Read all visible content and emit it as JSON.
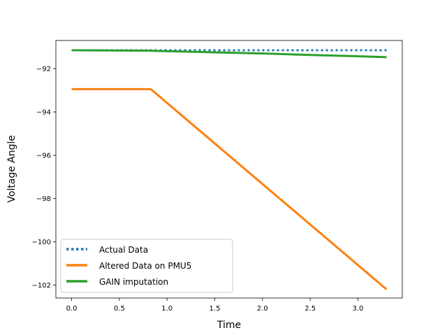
{
  "chart_data": {
    "type": "line",
    "xlabel": "Time",
    "ylabel": "Voltage Angle",
    "xlim": [
      -0.165,
      3.465
    ],
    "ylim": [
      -102.6,
      -90.7
    ],
    "xticks": [
      0.0,
      0.5,
      1.0,
      1.5,
      2.0,
      2.5,
      3.0
    ],
    "xtick_labels": [
      "0.0",
      "0.5",
      "1.0",
      "1.5",
      "2.0",
      "2.5",
      "3.0"
    ],
    "yticks": [
      -92,
      -94,
      -96,
      -98,
      -100,
      -102
    ],
    "ytick_labels": [
      "−92",
      "−94",
      "−96",
      "−98",
      "−100",
      "−102"
    ],
    "grid": false,
    "legend_position": "lower-left",
    "series": [
      {
        "name": "Actual Data",
        "style": "dotted",
        "color": "#1f77b4",
        "x": [
          0.0,
          3.3
        ],
        "y": [
          -91.15,
          -91.15
        ]
      },
      {
        "name": "Altered Data on PMU5",
        "style": "solid",
        "color": "#ff7f0e",
        "x": [
          0.0,
          0.83,
          3.3
        ],
        "y": [
          -92.95,
          -92.95,
          -102.2
        ]
      },
      {
        "name": "GAIN imputation",
        "style": "solid",
        "color": "#2ca02c",
        "x": [
          0.0,
          0.8,
          1.5,
          2.0,
          2.5,
          3.0,
          3.3
        ],
        "y": [
          -91.15,
          -91.17,
          -91.25,
          -91.3,
          -91.37,
          -91.43,
          -91.47
        ]
      }
    ]
  }
}
